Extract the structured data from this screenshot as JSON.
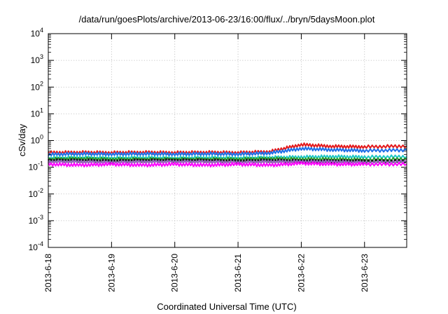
{
  "chart_data": {
    "type": "line",
    "title": "/data/run/goesPlots/archive/2013-06-23/16:00/flux/../bryn/5daysMoon.plot",
    "xlabel": "Coordinated Universal Time (UTC)",
    "ylabel": "cSv/day",
    "yscale": "log",
    "ylim": [
      0.0001,
      10000
    ],
    "y_ticks": [
      {
        "base": "10",
        "exp": "-4",
        "value": 0.0001
      },
      {
        "base": "10",
        "exp": "-3",
        "value": 0.001
      },
      {
        "base": "10",
        "exp": "-2",
        "value": 0.01
      },
      {
        "base": "10",
        "exp": "-1",
        "value": 0.1
      },
      {
        "base": "10",
        "exp": "0",
        "value": 1
      },
      {
        "base": "10",
        "exp": "1",
        "value": 10
      },
      {
        "base": "10",
        "exp": "2",
        "value": 100
      },
      {
        "base": "10",
        "exp": "3",
        "value": 1000
      },
      {
        "base": "10",
        "exp": "4",
        "value": 10000
      }
    ],
    "xlim": [
      "2013-06-18",
      "2013-06-23T16:00"
    ],
    "x_ticks": [
      "2013-6-18",
      "2013-6-19",
      "2013-6-20",
      "2013-6-21",
      "2013-6-22",
      "2013-6-23"
    ],
    "grid": true,
    "x": [
      "2013-06-18T00:00",
      "2013-06-18T12:00",
      "2013-06-19T00:00",
      "2013-06-19T12:00",
      "2013-06-20T00:00",
      "2013-06-20T12:00",
      "2013-06-21T00:00",
      "2013-06-21T12:00",
      "2013-06-22T00:00",
      "2013-06-22T12:00",
      "2013-06-23T00:00",
      "2013-06-23T16:00"
    ],
    "series": [
      {
        "color": "#e41a1c",
        "values": [
          0.35,
          0.36,
          0.35,
          0.36,
          0.35,
          0.36,
          0.35,
          0.38,
          0.7,
          0.6,
          0.58,
          0.62
        ]
      },
      {
        "color": "#1f6fe8",
        "values": [
          0.3,
          0.32,
          0.31,
          0.32,
          0.31,
          0.32,
          0.31,
          0.34,
          0.5,
          0.45,
          0.42,
          0.44
        ]
      },
      {
        "color": "#20c8c8",
        "values": [
          0.22,
          0.23,
          0.22,
          0.23,
          0.22,
          0.23,
          0.22,
          0.23,
          0.24,
          0.25,
          0.24,
          0.25
        ]
      },
      {
        "color": "#2ca02c",
        "values": [
          0.2,
          0.21,
          0.2,
          0.2,
          0.2,
          0.2,
          0.2,
          0.21,
          0.2,
          0.2,
          0.19,
          0.2
        ]
      },
      {
        "color": "#1a1a1a",
        "values": [
          0.18,
          0.18,
          0.17,
          0.18,
          0.18,
          0.18,
          0.17,
          0.18,
          0.17,
          0.17,
          0.17,
          0.17
        ]
      },
      {
        "color": "#9467bd",
        "values": [
          0.16,
          0.16,
          0.15,
          0.16,
          0.16,
          0.16,
          0.15,
          0.16,
          0.16,
          0.16,
          0.15,
          0.16
        ]
      },
      {
        "color": "#ff00ff",
        "values": [
          0.13,
          0.12,
          0.13,
          0.12,
          0.13,
          0.12,
          0.13,
          0.12,
          0.14,
          0.13,
          0.13,
          0.13
        ]
      }
    ]
  }
}
